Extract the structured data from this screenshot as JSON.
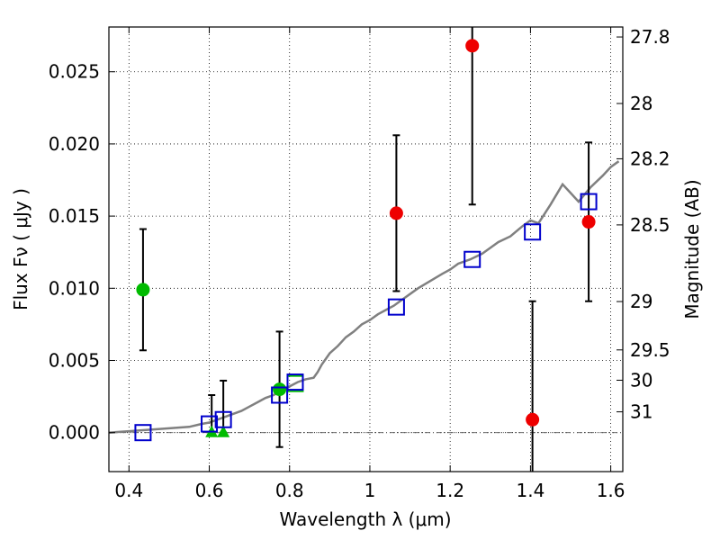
{
  "chart_data": {
    "type": "scatter",
    "xlabel": "Wavelength  λ (μm)",
    "ylabel": "Flux  Fν  ( μJy )",
    "ylabel_right": "Magnitude (AB)",
    "xlim": [
      0.35,
      1.63
    ],
    "ylim": [
      -0.0027,
      0.0281
    ],
    "grid": true,
    "x_ticks": [
      0.4,
      0.6,
      0.8,
      1.0,
      1.2,
      1.4,
      1.6
    ],
    "x_tick_labels": [
      "0.4",
      "0.6",
      "0.8",
      "1",
      "1.2",
      "1.4",
      "1.6"
    ],
    "y_ticks": [
      0.0,
      0.005,
      0.01,
      0.015,
      0.02,
      0.025
    ],
    "y_tick_labels": [
      "0.000",
      "0.005",
      "0.010",
      "0.015",
      "0.020",
      "0.025"
    ],
    "right_ticks": [
      {
        "label": "27.8",
        "flux": 0.02741
      },
      {
        "label": "28",
        "flux": 0.0228
      },
      {
        "label": "28.2",
        "flux": 0.01897
      },
      {
        "label": "28.5",
        "flux": 0.01439
      },
      {
        "label": "29",
        "flux": 0.00908
      },
      {
        "label": "29.5",
        "flux": 0.00573
      },
      {
        "label": "30",
        "flux": 0.00363
      },
      {
        "label": "31",
        "flux": 0.00144
      }
    ],
    "colors": {
      "green": "#00bb00",
      "red": "#ee0000",
      "blue": "#0000cc",
      "model": "#808080",
      "errorbar": "#000000"
    },
    "model_sed": {
      "x": [
        0.35,
        0.4,
        0.45,
        0.5,
        0.55,
        0.58,
        0.6,
        0.62,
        0.64,
        0.66,
        0.68,
        0.7,
        0.72,
        0.74,
        0.76,
        0.78,
        0.8,
        0.82,
        0.84,
        0.86,
        0.87,
        0.88,
        0.9,
        0.92,
        0.94,
        0.96,
        0.98,
        1.0,
        1.02,
        1.04,
        1.06,
        1.08,
        1.1,
        1.12,
        1.15,
        1.18,
        1.2,
        1.22,
        1.25,
        1.28,
        1.3,
        1.32,
        1.35,
        1.38,
        1.4,
        1.42,
        1.45,
        1.48,
        1.5,
        1.52,
        1.55,
        1.58,
        1.6,
        1.62
      ],
      "y": [
        0.0,
        0.0001,
        0.0002,
        0.0003,
        0.0004,
        0.0006,
        0.0007,
        0.0009,
        0.0011,
        0.0013,
        0.0015,
        0.0018,
        0.0021,
        0.0024,
        0.0026,
        0.0029,
        0.0032,
        0.0035,
        0.0037,
        0.0038,
        0.0042,
        0.0047,
        0.0055,
        0.006,
        0.0066,
        0.007,
        0.0075,
        0.0078,
        0.0082,
        0.0085,
        0.0088,
        0.0092,
        0.0096,
        0.01,
        0.0105,
        0.011,
        0.0113,
        0.0117,
        0.012,
        0.0124,
        0.0128,
        0.0132,
        0.0136,
        0.0143,
        0.0147,
        0.0145,
        0.0158,
        0.0172,
        0.0166,
        0.016,
        0.017,
        0.0178,
        0.0184,
        0.0188
      ]
    },
    "series": [
      {
        "marker": "circle",
        "color": "green",
        "points": [
          {
            "x": 0.435,
            "y": 0.0099,
            "err": 0.0042
          },
          {
            "x": 0.775,
            "y": 0.003,
            "err": 0.004
          }
        ]
      },
      {
        "marker": "triangle",
        "color": "green",
        "points": [
          {
            "x": 0.606,
            "y": 0.0,
            "err_low": 0.0,
            "err_high": 0.0026
          },
          {
            "x": 0.635,
            "y": 0.0,
            "err_low": 0.0,
            "err_high": 0.0036
          }
        ]
      },
      {
        "marker": "circle",
        "color": "red",
        "points": [
          {
            "x": 1.066,
            "y": 0.0152,
            "err": 0.0054
          },
          {
            "x": 1.255,
            "y": 0.0268,
            "err": 0.011
          },
          {
            "x": 1.405,
            "y": 0.0009,
            "err": 0.0082
          },
          {
            "x": 1.545,
            "y": 0.0146,
            "err": 0.0055
          }
        ]
      },
      {
        "marker": "open-square",
        "color": "green",
        "points": [
          {
            "x": 0.814,
            "y": 0.0034
          }
        ]
      },
      {
        "marker": "open-square",
        "color": "blue",
        "points": [
          {
            "x": 0.435,
            "y": 0.0
          },
          {
            "x": 0.6,
            "y": 0.0006
          },
          {
            "x": 0.635,
            "y": 0.0009
          },
          {
            "x": 0.775,
            "y": 0.0026
          },
          {
            "x": 0.814,
            "y": 0.0035
          },
          {
            "x": 1.066,
            "y": 0.0087
          },
          {
            "x": 1.255,
            "y": 0.012
          },
          {
            "x": 1.405,
            "y": 0.0139
          },
          {
            "x": 1.545,
            "y": 0.016
          }
        ]
      }
    ]
  }
}
